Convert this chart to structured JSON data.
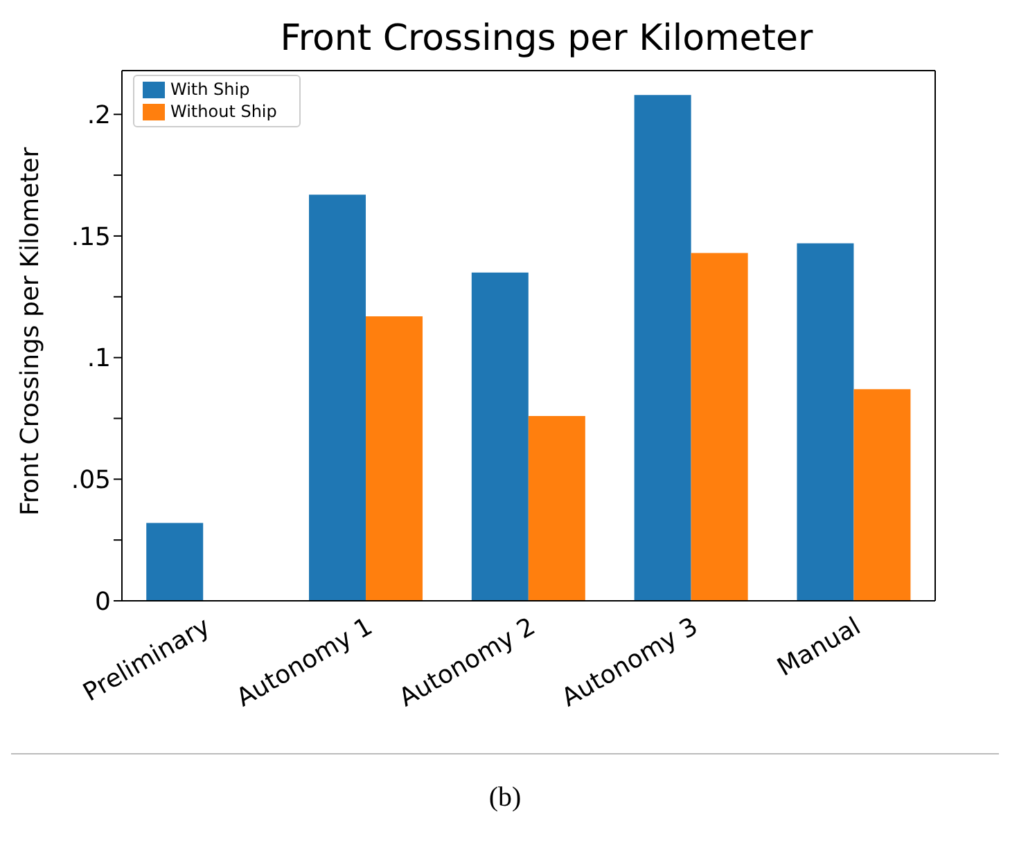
{
  "chart_data": {
    "type": "bar",
    "title": "Front Crossings per Kilometer",
    "ylabel": "Front Crossings per Kilometer",
    "categories": [
      "Preliminary",
      "Autonomy 1",
      "Autonomy 2",
      "Autonomy 3",
      "Manual"
    ],
    "series": [
      {
        "name": "With Ship",
        "color": "#1f77b4",
        "values": [
          0.032,
          0.167,
          0.135,
          0.208,
          0.147
        ]
      },
      {
        "name": "Without Ship",
        "color": "#ff7f0e",
        "values": [
          0,
          0.117,
          0.076,
          0.143,
          0.087
        ]
      }
    ],
    "ylim": [
      0,
      0.218
    ],
    "yticks": [
      0,
      {
        "value": 0.025,
        "label": null
      },
      {
        "value": 0.05,
        "label": ".05"
      },
      {
        "value": 0.075,
        "label": null
      },
      {
        "value": 0.1,
        "label": ".1"
      },
      {
        "value": 0.125,
        "label": null
      },
      {
        "value": 0.15,
        "label": ".15"
      },
      {
        "value": 0.175,
        "label": null
      },
      {
        "value": 0.2,
        "label": ".2"
      }
    ],
    "legend": "top left",
    "grid": false,
    "annotations": [
      "(b)"
    ]
  }
}
